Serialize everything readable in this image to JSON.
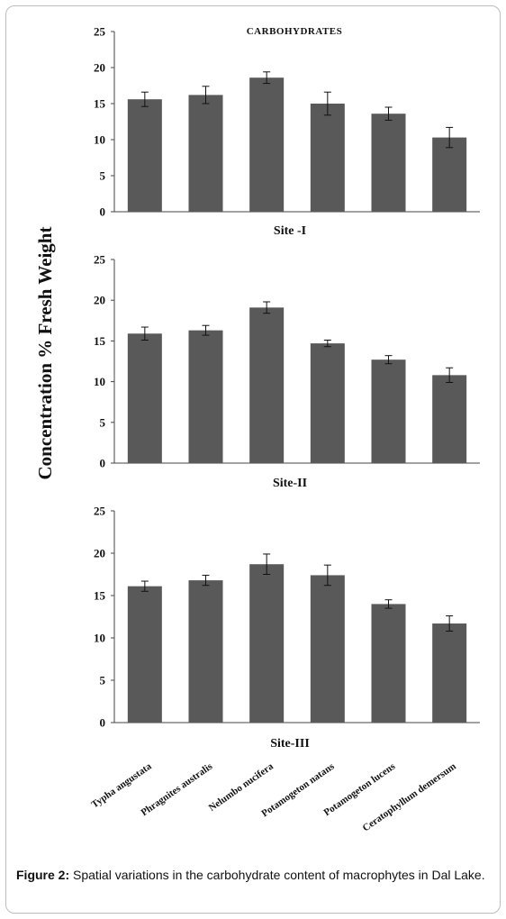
{
  "chart_data": {
    "type": "bar",
    "title": "CARBOHYDRATES",
    "ylabel": "Concentration % Fresh Weight",
    "ylim": [
      0,
      25
    ],
    "yticks": [
      0,
      5,
      10,
      15,
      20,
      25
    ],
    "bar_color": "#595959",
    "categories": [
      "Typha angustata",
      "Phragnites australis",
      "Nelumbo nucifera",
      "Potamogeton natans",
      "Potamogeton lucens",
      "Ceratophyllum demersum"
    ],
    "panels": [
      {
        "name": "Site -I",
        "values": [
          15.6,
          16.2,
          18.6,
          15.0,
          13.6,
          10.3
        ],
        "errors": [
          1.0,
          1.2,
          0.8,
          1.6,
          0.9,
          1.4
        ]
      },
      {
        "name": "Site-II",
        "values": [
          15.9,
          16.3,
          19.1,
          14.7,
          12.7,
          10.8
        ],
        "errors": [
          0.8,
          0.6,
          0.7,
          0.4,
          0.5,
          0.9
        ]
      },
      {
        "name": "Site-III",
        "values": [
          16.1,
          16.8,
          18.7,
          17.4,
          14.0,
          11.7
        ],
        "errors": [
          0.6,
          0.6,
          1.2,
          1.2,
          0.5,
          0.9
        ]
      }
    ]
  },
  "caption": {
    "label": "Figure 2:",
    "text": " Spatial variations in the carbohydrate content of macrophytes in Dal Lake."
  }
}
